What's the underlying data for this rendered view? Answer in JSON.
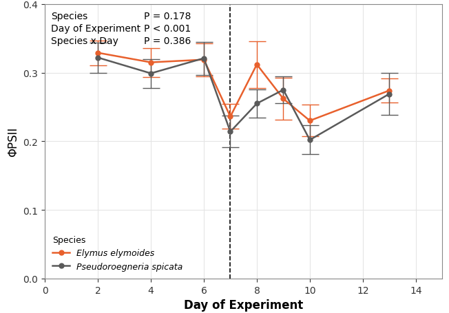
{
  "chart_data": {
    "type": "line",
    "x_label": "Day of Experiment",
    "y_label": "ΦPSII",
    "x": [
      2,
      4,
      6,
      7,
      8,
      9,
      10,
      13
    ],
    "series": [
      {
        "name": "Elymus elymoides",
        "color": "#e8602c",
        "marker": "o",
        "line_style": "solid",
        "values": [
          0.329,
          0.315,
          0.319,
          0.236,
          0.312,
          0.262,
          0.23,
          0.274
        ],
        "error": [
          0.018,
          0.021,
          0.024,
          0.018,
          0.034,
          0.031,
          0.023,
          0.018
        ]
      },
      {
        "name": "Pseudoroegneria spicata",
        "color": "#5a5a5a",
        "marker": "o",
        "line_style": "solid",
        "values": [
          0.322,
          0.299,
          0.321,
          0.214,
          0.255,
          0.275,
          0.202,
          0.269
        ],
        "error": [
          0.022,
          0.021,
          0.024,
          0.023,
          0.021,
          0.02,
          0.021,
          0.031
        ]
      }
    ],
    "xlim": [
      0,
      15
    ],
    "xticks": [
      0,
      2,
      4,
      6,
      8,
      10,
      12,
      14
    ],
    "ylim": [
      0,
      0.4
    ],
    "yticks": [
      {
        "value": 0,
        "label": "0.0"
      },
      0.1,
      0.2,
      0.3,
      0.4
    ],
    "reference_line_x": 7,
    "stats": [
      {
        "term": "Species",
        "p": "P = 0.178"
      },
      {
        "term": "Day of Experiment",
        "p": "P < 0.001"
      },
      {
        "term": "Species x Day",
        "p": "P = 0.386"
      }
    ],
    "legend": "lower left",
    "legend_title": "Species",
    "grid": true
  }
}
